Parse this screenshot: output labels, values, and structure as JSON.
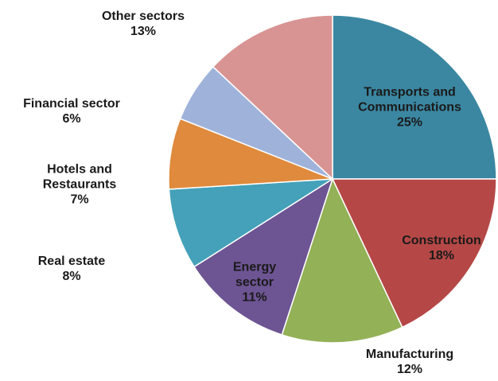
{
  "chart_data": {
    "type": "pie",
    "categories": [
      "Transports and Communications",
      "Construction",
      "Manufacturing",
      "Energy sector",
      "Real estate",
      "Hotels and Restaurants",
      "Financial sector",
      "Other sectors"
    ],
    "values": [
      25,
      18,
      12,
      11,
      8,
      7,
      6,
      13
    ],
    "value_labels": [
      "25%",
      "18%",
      "12%",
      "11%",
      "8%",
      "7%",
      "6%",
      "13%"
    ],
    "colors": [
      "#3b87a2",
      "#b54846",
      "#93b157",
      "#6d5493",
      "#44a1b9",
      "#df8a3c",
      "#9fb3da",
      "#d89493"
    ]
  }
}
